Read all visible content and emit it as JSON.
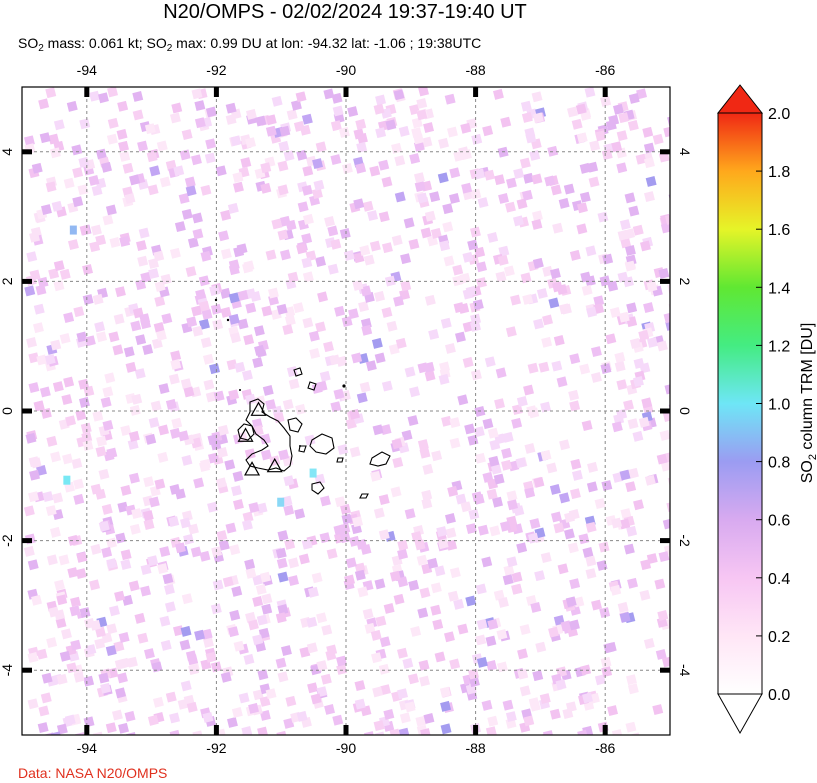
{
  "title": "N20/OMPS - 02/02/2024 19:37-19:40 UT",
  "subtitle": {
    "mass_label": "SO",
    "mass_sub": "2",
    "mass_text": " mass: 0.061 kt; SO",
    "max_sub": "2",
    "max_text": " max: 0.99 DU at lon: -94.32 lat: -1.06 ; 19:38UTC"
  },
  "map": {
    "lon_range": [
      -95.0,
      -85.0
    ],
    "lat_range": [
      -5.0,
      5.0
    ],
    "lon_ticks": [
      {
        "value": -94,
        "label": "-94"
      },
      {
        "value": -92,
        "label": "-92"
      },
      {
        "value": -90,
        "label": "-90"
      },
      {
        "value": -88,
        "label": "-88"
      },
      {
        "value": -86,
        "label": "-86"
      }
    ],
    "lat_ticks": [
      {
        "value": 4,
        "label": "4"
      },
      {
        "value": 2,
        "label": "2"
      },
      {
        "value": 0,
        "label": "0"
      },
      {
        "value": -2,
        "label": "-2"
      },
      {
        "value": -4,
        "label": "-4"
      }
    ],
    "volcano_markers": [
      {
        "name": "volcano-triangle-1",
        "lon": -91.35,
        "lat": 0.02
      },
      {
        "name": "volcano-triangle-2",
        "lon": -91.55,
        "lat": -0.38
      },
      {
        "name": "volcano-triangle-3",
        "lon": -91.1,
        "lat": -0.85
      },
      {
        "name": "volcano-triangle-4",
        "lon": -91.45,
        "lat": -0.9
      }
    ]
  },
  "colorbar": {
    "label": "SO2 column TRM [DU]",
    "min": 0.0,
    "max": 2.0,
    "ticks": [
      "0.0",
      "0.2",
      "0.4",
      "0.6",
      "0.8",
      "1.0",
      "1.2",
      "1.4",
      "1.6",
      "1.8",
      "2.0"
    ]
  },
  "colors": {
    "grid": "#888888",
    "frame": "#000000",
    "credit": "#e0301e"
  },
  "credit": "Data: NASA N20/OMPS"
}
